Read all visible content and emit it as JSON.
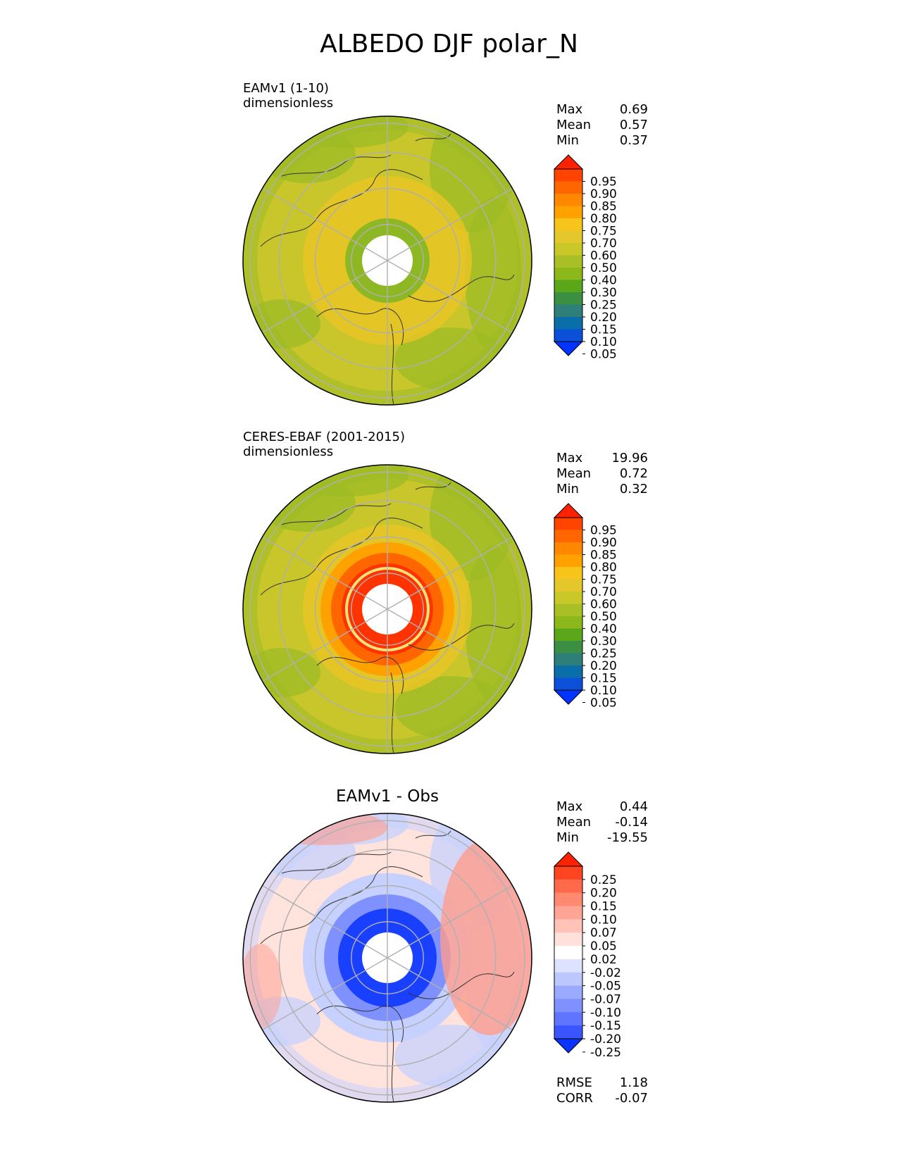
{
  "title": "ALBEDO DJF polar_N",
  "chart_data": [
    {
      "type": "polar-contour-map",
      "panel": "test",
      "title_lines": [
        "EAMv1 (1-10)",
        "dimensionless"
      ],
      "stats": [
        {
          "label": "Max",
          "value": "0.69"
        },
        {
          "label": "Mean",
          "value": "0.57"
        },
        {
          "label": "Min",
          "value": "0.37"
        }
      ],
      "colorbar": {
        "levels": [
          "0.95",
          "0.90",
          "0.85",
          "0.80",
          "0.75",
          "0.70",
          "0.60",
          "0.50",
          "0.40",
          "0.30",
          "0.25",
          "0.20",
          "0.15",
          "0.10",
          "0.05"
        ],
        "colors": [
          "#ff2200",
          "#ff4400",
          "#ff6600",
          "#ff8800",
          "#ffa200",
          "#f7c41b",
          "#e4c82b",
          "#c9c828",
          "#a8bf25",
          "#8cb81c",
          "#5aa81a",
          "#3b8f42",
          "#2e7f7a",
          "#0a6ea8",
          "#0a50d8",
          "#0033ff"
        ]
      },
      "field_colors": {
        "high": "#e8c425",
        "mid": "#c8c62b",
        "low": "#9dbb26",
        "pole": "#8db824"
      }
    },
    {
      "type": "polar-contour-map",
      "panel": "reference",
      "title_lines": [
        "CERES-EBAF (2001-2015)",
        "dimensionless"
      ],
      "stats": [
        {
          "label": "Max",
          "value": "19.96"
        },
        {
          "label": "Mean",
          "value": "0.72"
        },
        {
          "label": "Min",
          "value": "0.32"
        }
      ],
      "colorbar": {
        "levels": [
          "0.95",
          "0.90",
          "0.85",
          "0.80",
          "0.75",
          "0.70",
          "0.60",
          "0.50",
          "0.40",
          "0.30",
          "0.25",
          "0.20",
          "0.15",
          "0.10",
          "0.05"
        ],
        "colors": [
          "#ff2200",
          "#ff4400",
          "#ff6600",
          "#ff8800",
          "#ffa200",
          "#f7c41b",
          "#e4c82b",
          "#c9c828",
          "#a8bf25",
          "#8cb81c",
          "#5aa81a",
          "#3b8f42",
          "#2e7f7a",
          "#0a6ea8",
          "#0a50d8",
          "#0033ff"
        ]
      },
      "field_colors": {
        "high": "#e8c425",
        "mid": "#c8c62b",
        "low": "#9dbb26",
        "pole": "#ff3300"
      }
    },
    {
      "type": "polar-contour-map",
      "panel": "difference",
      "title_lines": [
        "EAMv1 - Obs"
      ],
      "stats": [
        {
          "label": "Max",
          "value": "0.44"
        },
        {
          "label": "Mean",
          "value": "-0.14"
        },
        {
          "label": "Min",
          "value": "-19.55"
        }
      ],
      "metrics": [
        {
          "label": "RMSE",
          "value": "1.18"
        },
        {
          "label": "CORR",
          "value": "-0.07"
        }
      ],
      "colorbar": {
        "levels": [
          "0.25",
          "0.20",
          "0.15",
          "0.10",
          "0.07",
          "0.05",
          "0.02",
          "-0.02",
          "-0.05",
          "-0.07",
          "-0.10",
          "-0.15",
          "-0.20",
          "-0.25"
        ],
        "colors": [
          "#ff2200",
          "#ff4422",
          "#ff6a4a",
          "#ff8a70",
          "#ffa595",
          "#ffc3b8",
          "#ffe0da",
          "#ffffff",
          "#dde3ff",
          "#bcc8ff",
          "#9aaaff",
          "#7f90ff",
          "#5f74ff",
          "#3a55ff",
          "#0a33ff"
        ]
      },
      "field_colors": {
        "high": "#ff9c8c",
        "mid": "#ffe3dc",
        "low": "#c7d1ff",
        "pole": "#1a40ff"
      }
    }
  ]
}
